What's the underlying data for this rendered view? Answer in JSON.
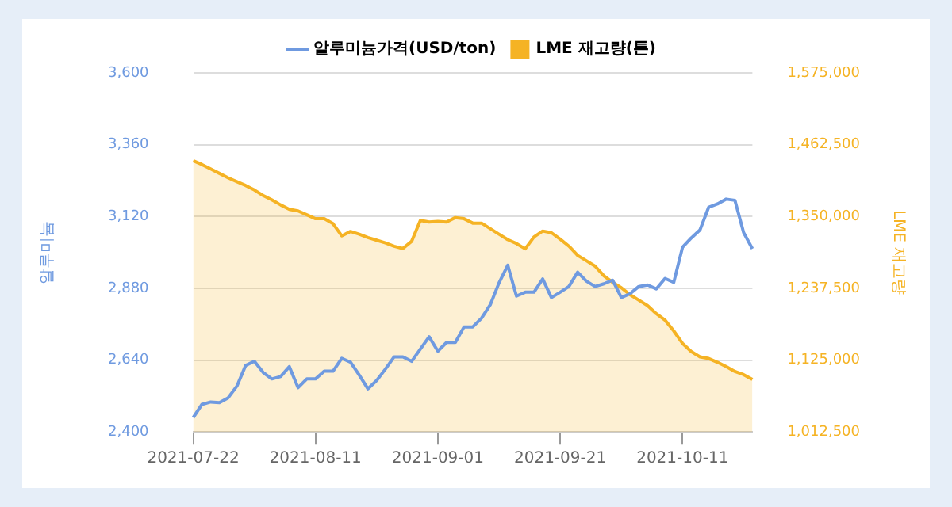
{
  "chart_data": {
    "type": "line",
    "categories": [
      "2021-07-22",
      null,
      null,
      null,
      null,
      null,
      null,
      null,
      null,
      null,
      null,
      null,
      null,
      null,
      "2021-08-11",
      null,
      null,
      null,
      null,
      null,
      null,
      null,
      null,
      null,
      null,
      null,
      null,
      null,
      "2021-09-01",
      null,
      null,
      null,
      null,
      null,
      null,
      null,
      null,
      null,
      null,
      null,
      null,
      null,
      "2021-09-21",
      null,
      null,
      null,
      null,
      null,
      null,
      null,
      null,
      null,
      null,
      null,
      null,
      null,
      "2021-10-11",
      null,
      null,
      null,
      null,
      null,
      null,
      null,
      null
    ],
    "series": [
      {
        "name": "알루미늄가격(USD/ton)",
        "type": "line",
        "color": "#6f9ae0",
        "values": [
          2448,
          2492,
          2500,
          2498,
          2514,
          2553,
          2622,
          2636,
          2599,
          2577,
          2585,
          2618,
          2548,
          2577,
          2577,
          2603,
          2603,
          2646,
          2633,
          2590,
          2544,
          2572,
          2610,
          2651,
          2651,
          2636,
          2677,
          2718,
          2670,
          2699,
          2699,
          2751,
          2751,
          2780,
          2825,
          2898,
          2957,
          2854,
          2867,
          2867,
          2911,
          2849,
          2867,
          2886,
          2934,
          2904,
          2886,
          2895,
          2907,
          2849,
          2862,
          2886,
          2891,
          2878,
          2913,
          2900,
          3017,
          3048,
          3075,
          3151,
          3162,
          3178,
          3174,
          3066,
          3012
        ]
      },
      {
        "name": "LME 재고량(톤)",
        "type": "area",
        "axis": "y2",
        "color": "#f5b324",
        "values": [
          1437400,
          1431400,
          1424400,
          1417500,
          1410600,
          1404500,
          1398500,
          1391500,
          1382900,
          1376000,
          1368200,
          1361300,
          1358700,
          1352600,
          1346500,
          1346500,
          1338800,
          1319700,
          1326600,
          1322300,
          1317100,
          1312800,
          1308500,
          1303300,
          1299800,
          1311100,
          1343900,
          1341400,
          1342200,
          1341400,
          1348300,
          1346500,
          1339600,
          1339600,
          1331000,
          1322300,
          1313700,
          1307600,
          1299300,
          1317900,
          1327200,
          1324600,
          1314500,
          1303500,
          1289100,
          1280700,
          1272200,
          1257000,
          1246800,
          1238400,
          1227400,
          1218900,
          1210400,
          1197800,
          1187600,
          1170700,
          1151200,
          1138500,
          1130100,
          1127500,
          1121600,
          1114900,
          1107200,
          1102200,
          1094600
        ]
      }
    ],
    "ylabel": "알루미늄",
    "y2label": "LME 재고량",
    "ylim": [
      2400,
      3600
    ],
    "yticks": [
      {
        "value": 2400,
        "label": "2,400"
      },
      {
        "value": 2640,
        "label": "2,640"
      },
      {
        "value": 2880,
        "label": "2,880"
      },
      {
        "value": 3120,
        "label": "3,120"
      },
      {
        "value": 3360,
        "label": "3,360"
      },
      {
        "value": 3600,
        "label": "3,600"
      }
    ],
    "y2lim": [
      1012500,
      1575000
    ],
    "y2ticks": [
      {
        "value": 1012500,
        "label": "1,012,500"
      },
      {
        "value": 1125000,
        "label": "1,125,000"
      },
      {
        "value": 1237500,
        "label": "1,237,500"
      },
      {
        "value": 1350000,
        "label": "1,350,000"
      },
      {
        "value": 1462500,
        "label": "1,462,500"
      },
      {
        "value": 1575000,
        "label": "1,575,000"
      }
    ],
    "legend": "top",
    "grid": "y"
  }
}
